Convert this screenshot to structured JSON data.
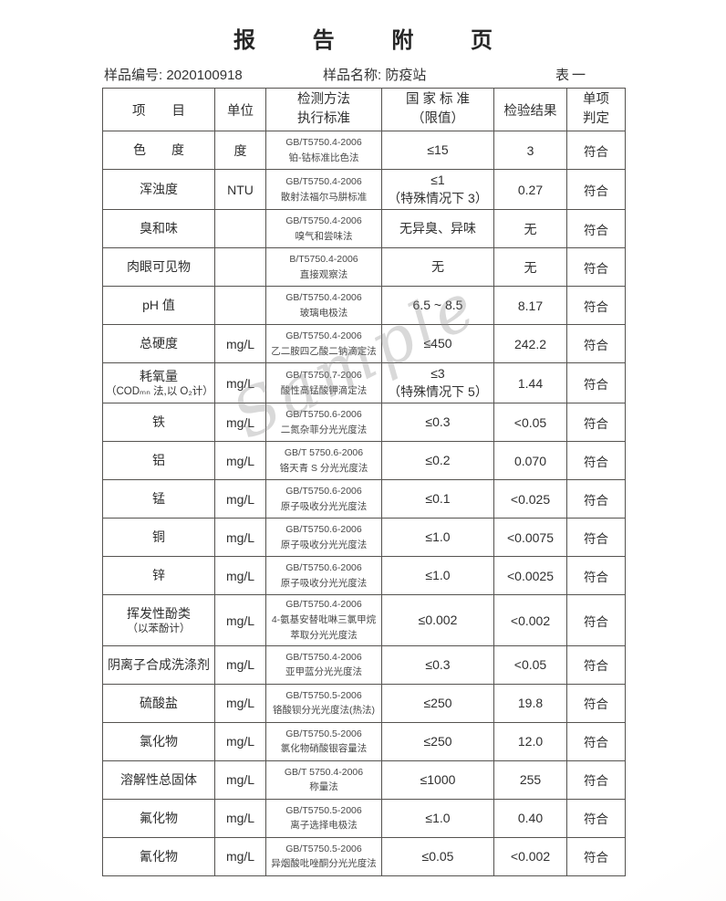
{
  "page": {
    "title": "报 告 附 页",
    "sample_no_label": "样品编号:",
    "sample_no_value": "2020100918",
    "sample_name_label": "样品名称:",
    "sample_name_value": "防疫站",
    "table_index_label": "表一",
    "watermark": "Sample"
  },
  "table": {
    "header": {
      "item": "项　　目",
      "unit": "单位",
      "method_line1": "检测方法",
      "method_line2": "执行标准",
      "standard_line1": "国 家 标 准",
      "standard_line2": "（限值）",
      "result": "检验结果",
      "judge_line1": "单项",
      "judge_line2": "判定"
    },
    "rows": [
      {
        "item": "色　　度",
        "unit": "度",
        "m1": "GB/T5750.4-2006",
        "m2": "铂-钴标准比色法",
        "s1": "≤15",
        "result": "3",
        "judge": "符合"
      },
      {
        "item": "浑浊度",
        "unit": "NTU",
        "m1": "GB/T5750.4-2006",
        "m2": "散射法福尔马肼标准",
        "s1": "≤1",
        "s2": "（特殊情况下 3）",
        "result": "0.27",
        "judge": "符合"
      },
      {
        "item": "臭和味",
        "unit": "",
        "m1": "GB/T5750.4-2006",
        "m2": "嗅气和尝味法",
        "s1": "无异臭、异味",
        "result": "无",
        "judge": "符合"
      },
      {
        "item": "肉眼可见物",
        "unit": "",
        "m1": "B/T5750.4-2006",
        "m2": "直接观察法",
        "s1": "无",
        "result": "无",
        "judge": "符合"
      },
      {
        "item": "pH 值",
        "unit": "",
        "m1": "GB/T5750.4-2006",
        "m2": "玻璃电极法",
        "s1": "6.5 ~ 8.5",
        "result": "8.17",
        "judge": "符合"
      },
      {
        "item": "总硬度",
        "unit": "mg/L",
        "m1": "GB/T5750.4-2006",
        "m2": "乙二胺四乙酸二钠滴定法",
        "s1": "≤450",
        "result": "242.2",
        "judge": "符合"
      },
      {
        "item": "耗氧量",
        "item2": "（CODₘₙ 法,以 O₂计）",
        "unit": "mg/L",
        "m1": "GB/T5750.7-2006",
        "m2": "酸性高锰酸钾滴定法",
        "s1": "≤3",
        "s2": "（特殊情况下 5）",
        "result": "1.44",
        "judge": "符合"
      },
      {
        "item": "铁",
        "unit": "mg/L",
        "m1": "GB/T5750.6-2006",
        "m2": "二氮杂菲分光光度法",
        "s1": "≤0.3",
        "result": "<0.05",
        "judge": "符合"
      },
      {
        "item": "铝",
        "unit": "mg/L",
        "m1": "GB/T 5750.6-2006",
        "m2": "铬天青 S 分光光度法",
        "s1": "≤0.2",
        "result": "0.070",
        "judge": "符合"
      },
      {
        "item": "锰",
        "unit": "mg/L",
        "m1": "GB/T5750.6-2006",
        "m2": "原子吸收分光光度法",
        "s1": "≤0.1",
        "result": "<0.025",
        "judge": "符合"
      },
      {
        "item": "铜",
        "unit": "mg/L",
        "m1": "GB/T5750.6-2006",
        "m2": "原子吸收分光光度法",
        "s1": "≤1.0",
        "result": "<0.0075",
        "judge": "符合"
      },
      {
        "item": "锌",
        "unit": "mg/L",
        "m1": "GB/T5750.6-2006",
        "m2": "原子吸收分光光度法",
        "s1": "≤1.0",
        "result": "<0.0025",
        "judge": "符合"
      },
      {
        "item": "挥发性酚类",
        "item2": "（以苯酚计）",
        "unit": "mg/L",
        "m1": "GB/T5750.4-2006",
        "m2": "4-氨基安替吡啉三氯甲烷",
        "m3": "萃取分光光度法",
        "s1": "≤0.002",
        "result": "<0.002",
        "judge": "符合"
      },
      {
        "item": "阴离子合成洗涤剂",
        "unit": "mg/L",
        "m1": "GB/T5750.4-2006",
        "m2": "亚甲蓝分光光度法",
        "s1": "≤0.3",
        "result": "<0.05",
        "judge": "符合"
      },
      {
        "item": "硫酸盐",
        "unit": "mg/L",
        "m1": "GB/T5750.5-2006",
        "m2": "铬酸钡分光光度法(热法)",
        "s1": "≤250",
        "result": "19.8",
        "judge": "符合"
      },
      {
        "item": "氯化物",
        "unit": "mg/L",
        "m1": "GB/T5750.5-2006",
        "m2": "氯化物硝酸银容量法",
        "s1": "≤250",
        "result": "12.0",
        "judge": "符合"
      },
      {
        "item": "溶解性总固体",
        "unit": "mg/L",
        "m1": "GB/T 5750.4-2006",
        "m2": "称量法",
        "s1": "≤1000",
        "result": "255",
        "judge": "符合"
      },
      {
        "item": "氟化物",
        "unit": "mg/L",
        "m1": "GB/T5750.5-2006",
        "m2": "离子选择电极法",
        "s1": "≤1.0",
        "result": "0.40",
        "judge": "符合"
      },
      {
        "item": "氰化物",
        "unit": "mg/L",
        "m1": "GB/T5750.5-2006",
        "m2": "异烟酸吡唑酮分光光度法",
        "s1": "≤0.05",
        "result": "<0.002",
        "judge": "符合"
      }
    ]
  }
}
